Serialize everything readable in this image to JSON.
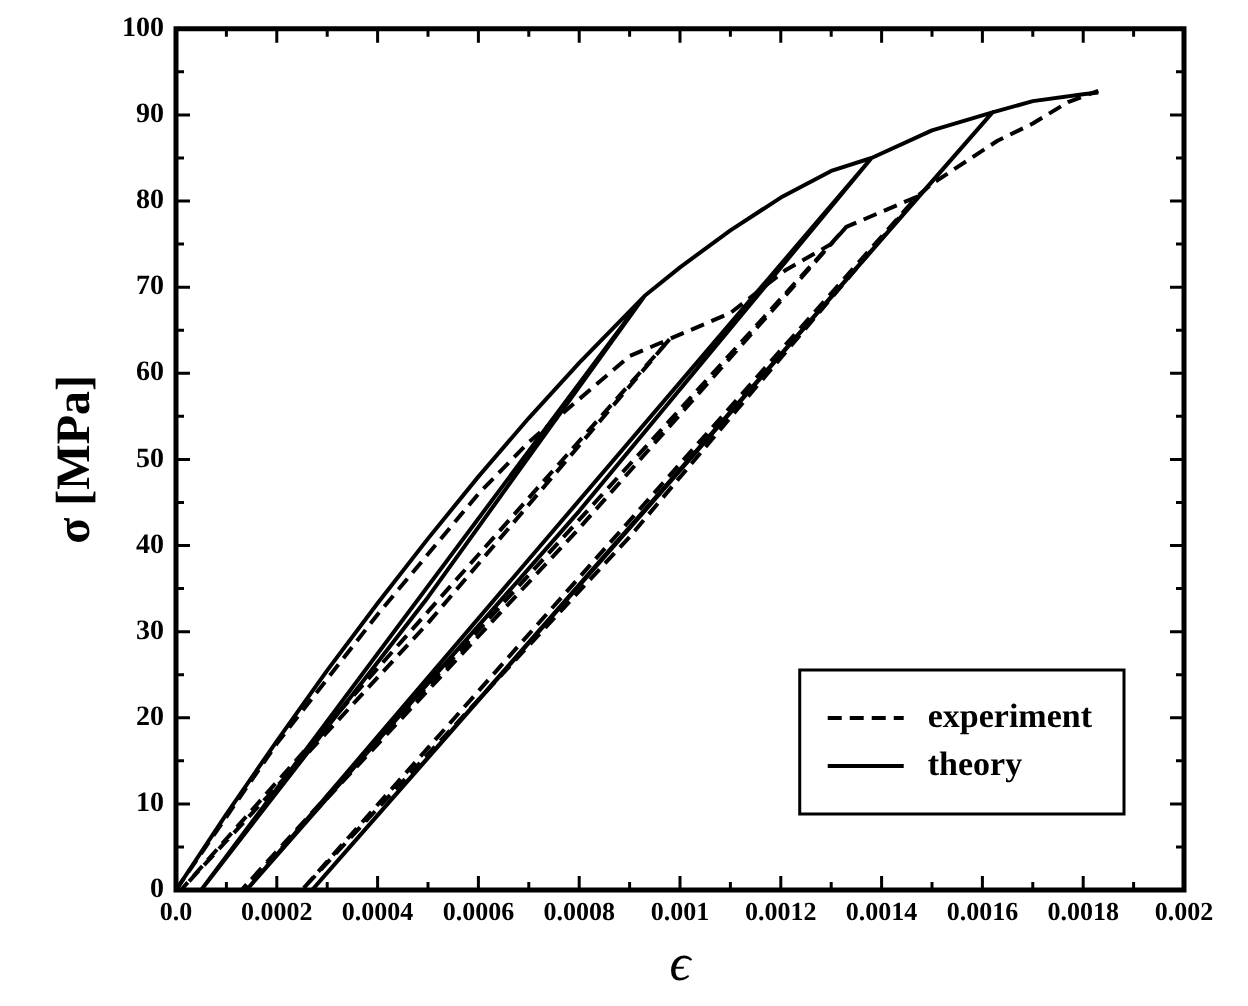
{
  "chart_data": {
    "type": "line",
    "xlabel": "ϵ",
    "ylabel": "σ [MPa]",
    "xlim": [
      0,
      0.002
    ],
    "ylim": [
      0,
      100
    ],
    "xticks": [
      {
        "value": 0,
        "label": "0.0"
      },
      {
        "value": 0.0001,
        "label": null
      },
      0.0002,
      {
        "value": 0.0003,
        "label": null
      },
      0.0004,
      {
        "value": 0.0005,
        "label": null
      },
      0.0006,
      {
        "value": 0.0007,
        "label": null
      },
      0.0008,
      {
        "value": 0.0009,
        "label": null
      },
      0.001,
      {
        "value": 0.0011,
        "label": null
      },
      0.0012,
      {
        "value": 0.0013,
        "label": null
      },
      0.0014,
      {
        "value": 0.0015,
        "label": null
      },
      0.0016,
      {
        "value": 0.0017,
        "label": null
      },
      0.0018,
      {
        "value": 0.0019,
        "label": null
      },
      0.002
    ],
    "yticks": [
      0,
      {
        "value": 5,
        "label": null
      },
      10,
      {
        "value": 15,
        "label": null
      },
      20,
      {
        "value": 25,
        "label": null
      },
      30,
      {
        "value": 35,
        "label": null
      },
      40,
      {
        "value": 45,
        "label": null
      },
      50,
      {
        "value": 55,
        "label": null
      },
      60,
      {
        "value": 65,
        "label": null
      },
      70,
      {
        "value": 75,
        "label": null
      },
      80,
      {
        "value": 85,
        "label": null
      },
      90,
      {
        "value": 95,
        "label": null
      },
      100
    ],
    "grid": false,
    "legend": "bottom right",
    "marker": "none",
    "series": [
      {
        "name": "experiment",
        "color": "#000000",
        "line_style": "dashed",
        "x": [
          0,
          0.0002,
          0.0004,
          0.0006,
          0.0007,
          0.0008,
          0.0009,
          0.00098,
          1e-05,
          0.0005,
          0.00098,
          0.0011,
          0.00121,
          0.0013,
          0.00133,
          0.00013,
          0.0008,
          0.00133,
          0.00147,
          0.00025,
          0.0009,
          0.00147,
          0.0015,
          0.00163,
          0.0017,
          0.00177,
          0.00183
        ],
        "values": [
          0,
          17,
          32,
          46,
          52,
          57,
          62,
          64,
          0,
          31,
          64,
          67,
          72,
          75,
          77,
          0,
          42,
          77,
          80.5,
          0,
          41,
          80.5,
          82,
          87,
          89,
          91.5,
          92.8
        ]
      },
      {
        "name": "theory",
        "color": "#000000",
        "line_style": "solid",
        "x": [
          0,
          0.0001,
          0.0002,
          0.0003,
          0.0004,
          0.0005,
          0.0006,
          0.0007,
          0.0008,
          0.00093,
          5e-05,
          0.0005,
          0.00093,
          0.001,
          0.0011,
          0.0012,
          0.0013,
          0.00138,
          0.00014,
          0.0008,
          0.00138,
          0.0015,
          0.00162,
          0.00027,
          0.0009,
          0.00162,
          0.0017,
          0.0018,
          0.00183
        ],
        "values": [
          0,
          8.8,
          17.3,
          25.5,
          33.3,
          40.8,
          48,
          54.8,
          61.2,
          69,
          0,
          34,
          69,
          72.3,
          76.6,
          80.4,
          83.5,
          85,
          0,
          44,
          85,
          88.2,
          90.3,
          0,
          42,
          90.3,
          91.6,
          92.4,
          92.6
        ]
      }
    ]
  }
}
